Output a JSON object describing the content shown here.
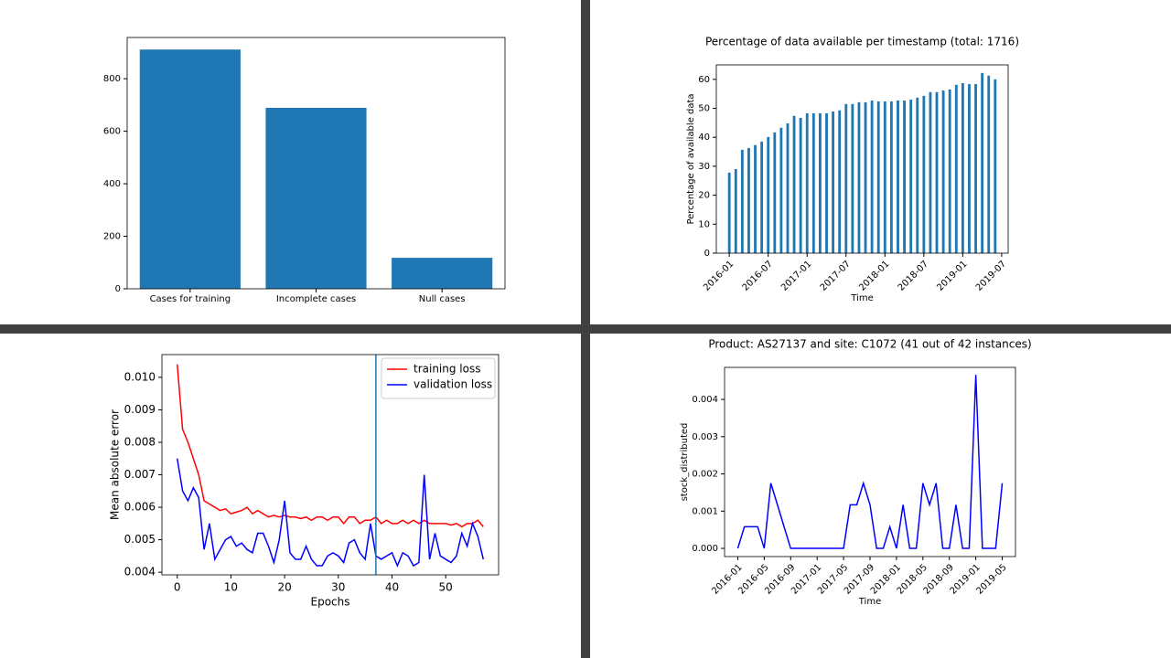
{
  "chart_data": [
    {
      "type": "bar",
      "categories": [
        "Cases for training",
        "Incomplete cases",
        "Null cases"
      ],
      "values": [
        911,
        689,
        118
      ],
      "color": "#1f77b4",
      "ylim": [
        0,
        957
      ],
      "yticks": [
        0,
        200,
        400,
        600,
        800
      ]
    },
    {
      "type": "bar",
      "title": "Percentage of data available per timestamp (total: 1716)",
      "ylabel": "Percentage of available data",
      "xlabel": "Time",
      "color": "#1f77b4",
      "x": [
        "2016-01",
        "2016-02",
        "2016-03",
        "2016-04",
        "2016-05",
        "2016-06",
        "2016-07",
        "2016-08",
        "2016-09",
        "2016-10",
        "2016-11",
        "2016-12",
        "2017-01",
        "2017-02",
        "2017-03",
        "2017-04",
        "2017-05",
        "2017-06",
        "2017-07",
        "2017-08",
        "2017-09",
        "2017-10",
        "2017-11",
        "2017-12",
        "2018-01",
        "2018-02",
        "2018-03",
        "2018-04",
        "2018-05",
        "2018-06",
        "2018-07",
        "2018-08",
        "2018-09",
        "2018-10",
        "2018-11",
        "2018-12",
        "2019-01",
        "2019-02",
        "2019-03",
        "2019-04",
        "2019-05",
        "2019-06"
      ],
      "values": [
        27.8,
        29,
        35.7,
        36.3,
        37.3,
        38.5,
        40.1,
        41.7,
        43.3,
        44.8,
        47.4,
        46.7,
        48.3,
        48.3,
        48.3,
        48.3,
        48.9,
        49.3,
        51.5,
        51.5,
        52.1,
        52.1,
        52.7,
        52.4,
        52.4,
        52.4,
        52.7,
        52.7,
        53,
        53.7,
        54.3,
        55.6,
        55.6,
        56.2,
        56.5,
        58.1,
        58.7,
        58.4,
        58.4,
        62.2,
        61.3,
        60
      ],
      "xlim": [
        "2015-11",
        "2019-08"
      ],
      "xticks": [
        "2016-01",
        "2016-07",
        "2017-01",
        "2017-07",
        "2018-01",
        "2018-07",
        "2019-01",
        "2019-07"
      ],
      "ylim": [
        0,
        65
      ],
      "yticks": [
        0,
        10,
        20,
        30,
        40,
        50,
        60
      ]
    },
    {
      "type": "line",
      "xlabel": "Epochs",
      "ylabel": "Mean absolute error",
      "legend": "upper right",
      "vline": 37,
      "vline_color": "#1f77b4",
      "x": [
        0,
        1,
        2,
        3,
        4,
        5,
        6,
        7,
        8,
        9,
        10,
        11,
        12,
        13,
        14,
        15,
        16,
        17,
        18,
        19,
        20,
        21,
        22,
        23,
        24,
        25,
        26,
        27,
        28,
        29,
        30,
        31,
        32,
        33,
        34,
        35,
        36,
        37,
        38,
        39,
        40,
        41,
        42,
        43,
        44,
        45,
        46,
        47,
        48,
        49,
        50,
        51,
        52,
        53,
        54,
        55,
        56,
        57
      ],
      "series": [
        {
          "name": "training loss",
          "color": "red",
          "values": [
            0.0104,
            0.0084,
            0.008,
            0.0075,
            0.007,
            0.0062,
            0.0061,
            0.006,
            0.0059,
            0.00595,
            0.0058,
            0.00585,
            0.0059,
            0.006,
            0.0058,
            0.0059,
            0.0058,
            0.0057,
            0.00575,
            0.0057,
            0.00575,
            0.0057,
            0.0057,
            0.00565,
            0.0057,
            0.0056,
            0.0057,
            0.0057,
            0.0056,
            0.0057,
            0.0057,
            0.0055,
            0.0057,
            0.0057,
            0.0055,
            0.0056,
            0.0056,
            0.0057,
            0.0055,
            0.0056,
            0.0055,
            0.0055,
            0.0056,
            0.0055,
            0.0056,
            0.0055,
            0.0056,
            0.0055,
            0.0055,
            0.0055,
            0.0055,
            0.00545,
            0.0055,
            0.0054,
            0.0055,
            0.0055,
            0.0056,
            0.0054
          ]
        },
        {
          "name": "validation loss",
          "color": "blue",
          "values": [
            0.0075,
            0.0065,
            0.0062,
            0.0066,
            0.0063,
            0.0047,
            0.0055,
            0.0044,
            0.0047,
            0.005,
            0.0051,
            0.0048,
            0.0049,
            0.0047,
            0.0046,
            0.0052,
            0.0052,
            0.0048,
            0.0043,
            0.005,
            0.0062,
            0.0046,
            0.0044,
            0.0044,
            0.0048,
            0.0044,
            0.0042,
            0.0042,
            0.0045,
            0.0046,
            0.0045,
            0.0043,
            0.0049,
            0.005,
            0.0046,
            0.0044,
            0.0055,
            0.0045,
            0.0044,
            0.0045,
            0.0046,
            0.0042,
            0.0046,
            0.0045,
            0.0042,
            0.0043,
            0.007,
            0.0044,
            0.0052,
            0.0045,
            0.0044,
            0.0043,
            0.0045,
            0.0052,
            0.0048,
            0.0055,
            0.0051,
            0.0044
          ]
        }
      ],
      "xlim": [
        -2.85,
        59.85
      ],
      "xticks": [
        0,
        10,
        20,
        30,
        40,
        50
      ],
      "ylim": [
        0.00392,
        0.0107
      ],
      "yticks": [
        0.004,
        0.005,
        0.006,
        0.007,
        0.008,
        0.009,
        {
          "value": 0.01,
          "label": "0.010"
        }
      ]
    },
    {
      "type": "line",
      "title": "Product: AS27137 and site: C1072 (41 out of 42 instances)",
      "ylabel": "stock_distributed",
      "xlabel": "Time",
      "color": "blue",
      "x": [
        "2016-01",
        "2016-02",
        "2016-03",
        "2016-04",
        "2016-05",
        "2016-06",
        "2016-07",
        "2016-08",
        "2016-09",
        "2016-10",
        "2016-11",
        "2016-12",
        "2017-01",
        "2017-02",
        "2017-03",
        "2017-04",
        "2017-05",
        "2017-06",
        "2017-07",
        "2017-08",
        "2017-09",
        "2017-10",
        "2017-11",
        "2017-12",
        "2018-01",
        "2018-02",
        "2018-03",
        "2018-04",
        "2018-05",
        "2018-06",
        "2018-07",
        "2018-08",
        "2018-09",
        "2018-10",
        "2018-11",
        "2018-12",
        "2019-01",
        "2019-02",
        "2019-03",
        "2019-04",
        "2019-05"
      ],
      "values": [
        0,
        0.00058,
        0.00058,
        0.00058,
        0,
        0.00175,
        0.00117,
        0.00058,
        0,
        0,
        0,
        0,
        0,
        0,
        0,
        0,
        0,
        0.00117,
        0.00117,
        0.00175,
        0.00117,
        0,
        0,
        0.00058,
        0,
        0.00117,
        0,
        0,
        0.00175,
        0.00117,
        0.00175,
        0,
        0,
        0.00117,
        0,
        0,
        0.00466,
        0,
        0,
        0,
        0.00175
      ],
      "xlim": [
        "2015-11",
        "2019-07"
      ],
      "xticks": [
        "2016-01",
        "2016-05",
        "2016-09",
        "2017-01",
        "2017-05",
        "2017-09",
        "2018-01",
        "2018-05",
        "2018-09",
        "2019-01",
        "2019-05"
      ],
      "ylim": [
        -0.00022,
        0.00486
      ],
      "yticks": [
        {
          "value": 0,
          "label": "0.000"
        },
        0.001,
        0.002,
        0.003,
        0.004
      ]
    }
  ]
}
